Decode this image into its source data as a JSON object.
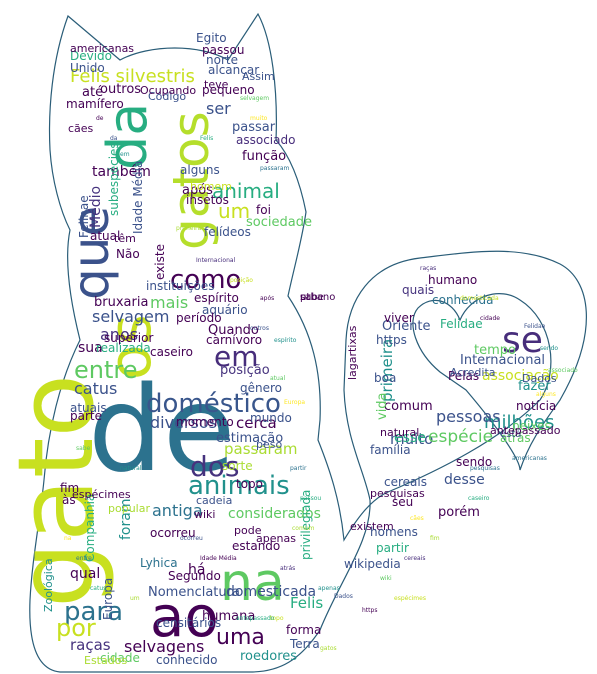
{
  "colors": {
    "outline": "#2a5d78",
    "palette": [
      "#440154",
      "#3b528b",
      "#21918c",
      "#5ec962",
      "#fde725",
      "#2c728e",
      "#27ad81",
      "#aadc32",
      "#472d7b",
      "#c8e020"
    ]
  },
  "words": [
    {
      "text": "de",
      "c": "#2c728e"
    },
    {
      "text": "gato",
      "c": "#c8e020"
    },
    {
      "text": "os",
      "c": "#c8e020"
    },
    {
      "text": "gatos",
      "c": "#b5de2b"
    },
    {
      "text": "ao",
      "c": "#440154"
    },
    {
      "text": "na",
      "c": "#5ec962"
    },
    {
      "text": "que",
      "c": "#3b528b"
    },
    {
      "text": "da",
      "c": "#27ad81"
    },
    {
      "text": "doméstico",
      "c": "#39568c"
    },
    {
      "text": "animais",
      "c": "#21918c"
    },
    {
      "text": "dos",
      "c": "#46337e"
    },
    {
      "text": "para",
      "c": "#2c728e"
    },
    {
      "text": "entre",
      "c": "#5ec962"
    },
    {
      "text": "como",
      "c": "#440154"
    },
    {
      "text": "em",
      "c": "#472d7b"
    },
    {
      "text": "se",
      "c": "#472d7b"
    },
    {
      "text": "por",
      "c": "#c8e020"
    },
    {
      "text": "uma",
      "c": "#440154"
    },
    {
      "text": "Felis silvestris",
      "c": "#c8e020"
    },
    {
      "text": "catus",
      "c": "#3b528b"
    },
    {
      "text": "anos",
      "c": "#46337e"
    },
    {
      "text": "selvagem",
      "c": "#3b528b"
    },
    {
      "text": "sua",
      "c": "#440154"
    },
    {
      "text": "mais",
      "c": "#5ec962"
    },
    {
      "text": "ser",
      "c": "#3b528b"
    },
    {
      "text": "animal",
      "c": "#27ad81"
    },
    {
      "text": "um",
      "c": "#c8e020"
    },
    {
      "text": "também",
      "c": "#440154"
    },
    {
      "text": "muito",
      "c": "#3b528b"
    },
    {
      "text": "espécie",
      "c": "#5ec962"
    },
    {
      "text": "milhões",
      "c": "#21918c"
    },
    {
      "text": "pessoas",
      "c": "#3b528b"
    },
    {
      "text": "selvagens",
      "c": "#440154"
    },
    {
      "text": "raças",
      "c": "#46337e"
    },
    {
      "text": "diversos",
      "c": "#3b528b"
    },
    {
      "text": "passaram",
      "c": "#aadc32"
    },
    {
      "text": "cerca",
      "c": "#440154"
    },
    {
      "text": "foram",
      "c": "#21918c"
    },
    {
      "text": "antiga",
      "c": "#2c728e"
    },
    {
      "text": "considerados",
      "c": "#5ec962"
    },
    {
      "text": "domesticada",
      "c": "#3b528b"
    },
    {
      "text": "humana",
      "c": "#440154"
    },
    {
      "text": "Felis",
      "c": "#27ad81"
    },
    {
      "text": "Nomenclatura",
      "c": "#3b528b"
    },
    {
      "text": "Segundo",
      "c": "#440154"
    },
    {
      "text": "Lyhica",
      "c": "#2c728e"
    },
    {
      "text": "roedores",
      "c": "#21918c"
    },
    {
      "text": "cidade",
      "c": "#5ec962"
    },
    {
      "text": "conhecido",
      "c": "#3b528b"
    },
    {
      "text": "primeira",
      "c": "#21918c"
    },
    {
      "text": "Oriente",
      "c": "#3b528b"
    },
    {
      "text": "humano",
      "c": "#440154"
    },
    {
      "text": "quais",
      "c": "#46337e"
    },
    {
      "text": "conhecida",
      "c": "#2c728e"
    },
    {
      "text": "Felidae",
      "c": "#27ad81"
    },
    {
      "text": "associação",
      "c": "#c8e020"
    },
    {
      "text": "Internacional",
      "c": "#3b528b"
    },
    {
      "text": "tempo",
      "c": "#5ec962"
    },
    {
      "text": "esse",
      "c": "#27ad81"
    },
    {
      "text": "desse",
      "c": "#3b528b"
    },
    {
      "text": "porém",
      "c": "#440154"
    },
    {
      "text": "sendo",
      "c": "#440154"
    },
    {
      "text": "família",
      "c": "#3b528b"
    },
    {
      "text": "posição",
      "c": "#46337e"
    },
    {
      "text": "momento",
      "c": "#440154"
    },
    {
      "text": "estimação",
      "c": "#3b528b"
    },
    {
      "text": "função",
      "c": "#440154"
    },
    {
      "text": "passar",
      "c": "#3b528b"
    },
    {
      "text": "associado",
      "c": "#472d7b"
    },
    {
      "text": "pequeno",
      "c": "#440154"
    },
    {
      "text": "após",
      "c": "#440154"
    },
    {
      "text": "foi",
      "c": "#440154"
    },
    {
      "text": "sociedade",
      "c": "#5ec962"
    },
    {
      "text": "felídeos",
      "c": "#3b528b"
    },
    {
      "text": "insetos",
      "c": "#440154"
    },
    {
      "text": "alguns",
      "c": "#3b528b"
    },
    {
      "text": "Médio",
      "c": "#46337e"
    },
    {
      "text": "outros",
      "c": "#440154"
    },
    {
      "text": "até",
      "c": "#440154"
    },
    {
      "text": "mamífero",
      "c": "#440154"
    },
    {
      "text": "Unido",
      "c": "#3b528b"
    },
    {
      "text": "Devido",
      "c": "#27ad81"
    },
    {
      "text": "americanas",
      "c": "#440154"
    },
    {
      "text": "bruxaria",
      "c": "#440154"
    },
    {
      "text": "espírito",
      "c": "#440154"
    },
    {
      "text": "aquário",
      "c": "#3b528b"
    },
    {
      "text": "período",
      "c": "#440154"
    },
    {
      "text": "Quando",
      "c": "#440154"
    },
    {
      "text": "carnívoro",
      "c": "#440154"
    },
    {
      "text": "caseiro",
      "c": "#440154"
    },
    {
      "text": "gênero",
      "c": "#3b528b"
    },
    {
      "text": "atual",
      "c": "#440154"
    },
    {
      "text": "atuais",
      "c": "#3b528b"
    },
    {
      "text": "parte",
      "c": "#440154"
    },
    {
      "text": "às",
      "c": "#440154"
    },
    {
      "text": "qual",
      "c": "#440154"
    },
    {
      "text": "fim",
      "c": "#440154"
    },
    {
      "text": "há",
      "c": "#440154"
    },
    {
      "text": "Europa",
      "c": "#3b528b"
    },
    {
      "text": "Zoológica",
      "c": "#21918c"
    },
    {
      "text": "Companhia",
      "c": "#27ad81"
    },
    {
      "text": "privilegiada",
      "c": "#27ad81"
    },
    {
      "text": "existem",
      "c": "#440154"
    },
    {
      "text": "cereais",
      "c": "#3b528b"
    },
    {
      "text": "homens",
      "c": "#3b528b"
    },
    {
      "text": "partir",
      "c": "#27ad81"
    },
    {
      "text": "wikipedia",
      "c": "#3b528b"
    },
    {
      "text": "forma",
      "c": "#440154"
    },
    {
      "text": "Terra",
      "c": "#3b528b"
    },
    {
      "text": "censitários",
      "c": "#3b528b"
    },
    {
      "text": "espécimes",
      "c": "#440154"
    },
    {
      "text": "Egito",
      "c": "#3b528b"
    },
    {
      "text": "passou",
      "c": "#440154"
    },
    {
      "text": "norte",
      "c": "#3b528b"
    },
    {
      "text": "alcançar",
      "c": "#3b528b"
    },
    {
      "text": "Assim",
      "c": "#3b528b"
    },
    {
      "text": "viver",
      "c": "#440154"
    },
    {
      "text": "https",
      "c": "#3b528b"
    },
    {
      "text": "lagartixas",
      "c": "#440154"
    },
    {
      "text": "comum",
      "c": "#440154"
    },
    {
      "text": "Pelas",
      "c": "#440154"
    },
    {
      "text": "Acredita",
      "c": "#3b528b"
    },
    {
      "text": "fazer",
      "c": "#21918c"
    },
    {
      "text": "notícia",
      "c": "#440154"
    },
    {
      "text": "Dados",
      "c": "#3b528b"
    },
    {
      "text": "peixes",
      "c": "#5ec962"
    },
    {
      "text": "atrás",
      "c": "#5ec962"
    },
    {
      "text": "boa",
      "c": "#3b528b"
    },
    {
      "text": "vida",
      "c": "#5ec962"
    },
    {
      "text": "popular",
      "c": "#aadc32"
    },
    {
      "text": "estando",
      "c": "#440154"
    },
    {
      "text": "apenas",
      "c": "#440154"
    },
    {
      "text": "pode",
      "c": "#440154"
    },
    {
      "text": "topo",
      "c": "#440154"
    },
    {
      "text": "mundo",
      "c": "#3b528b"
    },
    {
      "text": "peso",
      "c": "#3b528b"
    },
    {
      "text": "sorte",
      "c": "#aadc32"
    },
    {
      "text": "cadeia",
      "c": "#3b528b"
    },
    {
      "text": "wiki",
      "c": "#440154"
    },
    {
      "text": "existe",
      "c": "#440154"
    },
    {
      "text": "Idade Média",
      "c": "#3b528b"
    },
    {
      "text": "subespécies",
      "c": "#27ad81"
    },
    {
      "text": "instituições",
      "c": "#3b528b"
    },
    {
      "text": "Não",
      "c": "#440154"
    },
    {
      "text": "têm",
      "c": "#440154"
    },
    {
      "text": "cães",
      "c": "#440154"
    },
    {
      "text": "seu",
      "c": "#440154"
    },
    {
      "text": "ocorreu",
      "c": "#440154"
    },
    {
      "text": "Estados",
      "c": "#aadc32"
    },
    {
      "text": "Felinae",
      "c": "#3b528b"
    },
    {
      "text": "realizada",
      "c": "#27ad81"
    },
    {
      "text": "superior",
      "c": "#440154"
    },
    {
      "text": "pesquisas",
      "c": "#440154"
    },
    {
      "text": "está",
      "c": "#3b528b"
    },
    {
      "text": "natural",
      "c": "#440154"
    },
    {
      "text": "Código",
      "c": "#3b528b"
    },
    {
      "text": "Ocupando",
      "c": "#440154"
    },
    {
      "text": "homem",
      "c": "#c8e020"
    },
    {
      "text": "teve",
      "c": "#440154"
    },
    {
      "text": "antepassado",
      "c": "#440154"
    },
    {
      "text": "urbano",
      "c": "#440154"
    },
    {
      "text": "sabe",
      "c": "#440154"
    },
    {
      "text": "pt",
      "c": "#440154"
    }
  ]
}
